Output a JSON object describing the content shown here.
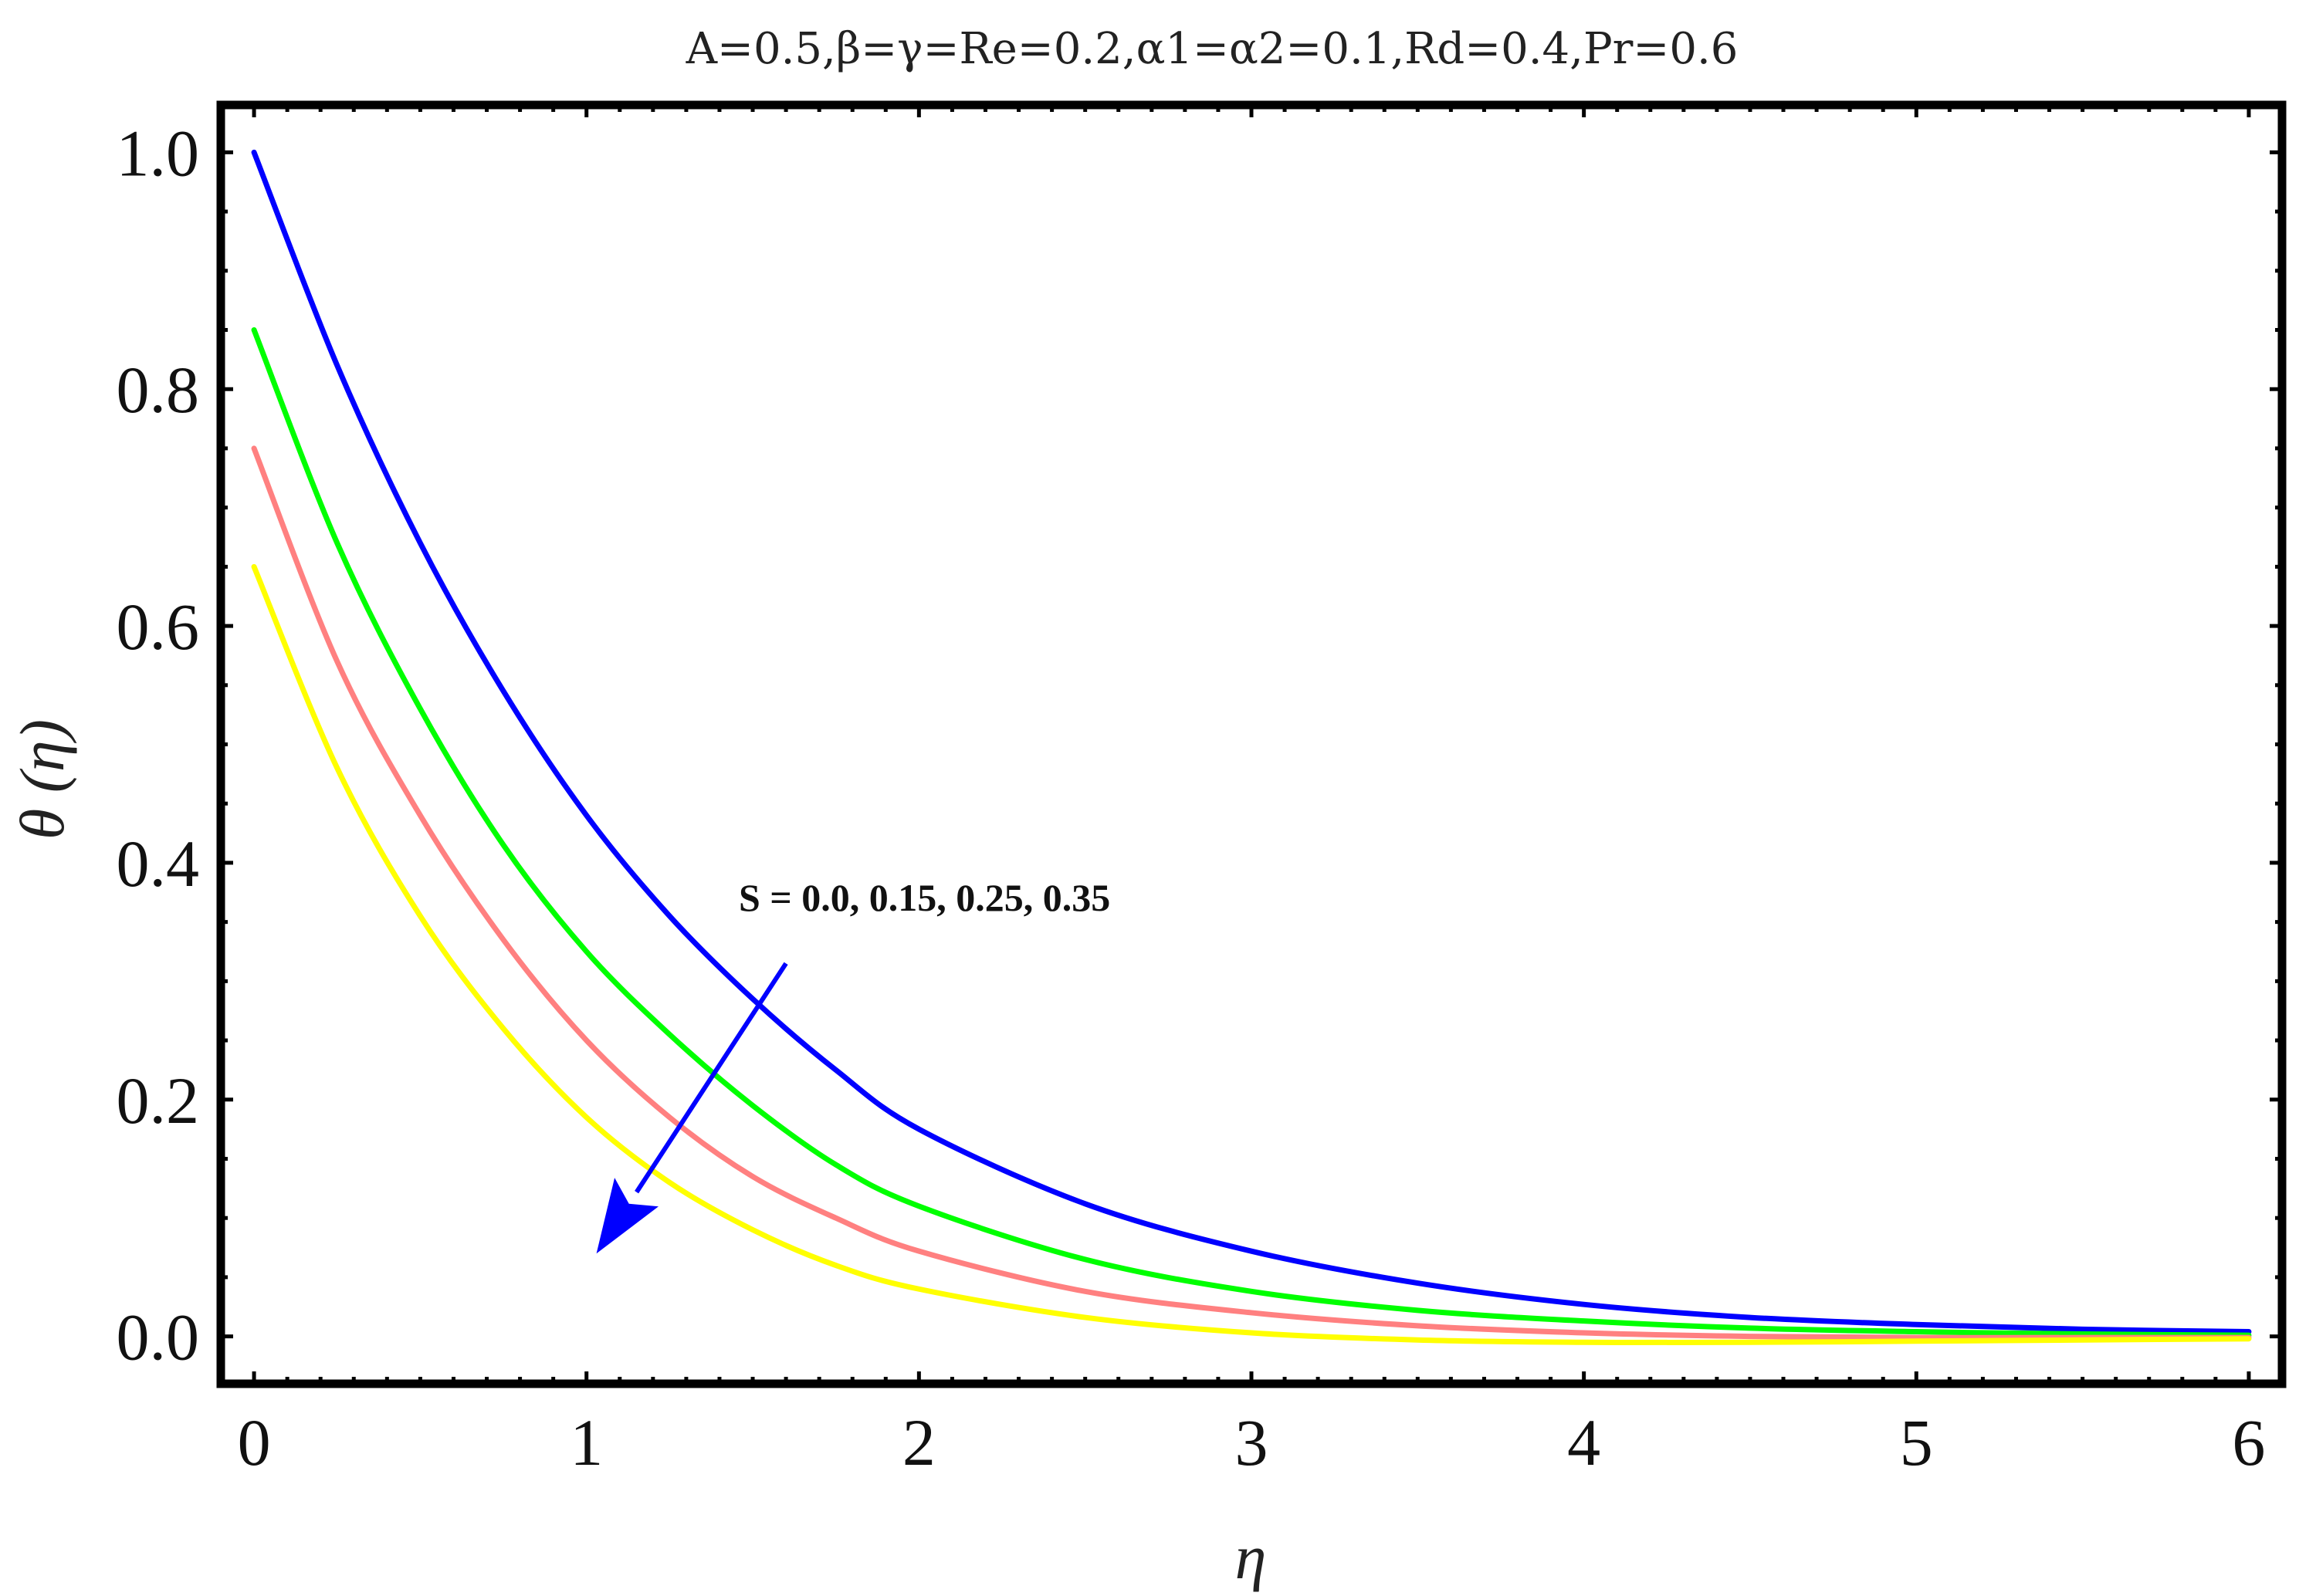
{
  "chart_data": {
    "type": "line",
    "title": "A=0.5,β=γ=Re=0.2,α1=α2=0.1,Rd=0.4,Pr=0.6",
    "xlabel": "η",
    "ylabel": "θ (η)",
    "xlim": [
      -0.1,
      6.1
    ],
    "ylim": [
      -0.04,
      1.04
    ],
    "x_ticks": [
      0,
      1,
      2,
      3,
      4,
      5,
      6
    ],
    "x_tick_labels": [
      "0",
      "1",
      "2",
      "3",
      "4",
      "5",
      "6"
    ],
    "y_ticks": [
      0.0,
      0.2,
      0.4,
      0.6,
      0.8,
      1.0
    ],
    "y_tick_labels": [
      "0.0",
      "0.2",
      "0.4",
      "0.6",
      "0.8",
      "1.0"
    ],
    "grid": false,
    "annotation": {
      "text": "S = 0.0, 0.15, 0.25, 0.35",
      "arrow_from": [
        1.6,
        0.315
      ],
      "arrow_to": [
        1.03,
        0.07
      ],
      "arrow_color": "#0000ff"
    },
    "x": [
      0,
      0.25,
      0.5,
      0.75,
      1,
      1.25,
      1.5,
      1.75,
      2,
      2.5,
      3,
      3.5,
      4,
      4.5,
      5,
      5.5,
      6
    ],
    "series": [
      {
        "color": "#0000ff",
        "values": [
          1.0,
          0.82,
          0.67,
          0.545,
          0.44,
          0.355,
          0.285,
          0.225,
          0.175,
          0.112,
          0.072,
          0.045,
          0.027,
          0.016,
          0.01,
          0.006,
          0.004
        ]
      },
      {
        "color": "#00ff00",
        "values": [
          0.85,
          0.67,
          0.53,
          0.415,
          0.325,
          0.255,
          0.195,
          0.145,
          0.11,
          0.065,
          0.038,
          0.022,
          0.013,
          0.007,
          0.004,
          0.002,
          0.001
        ]
      },
      {
        "color": "#ff8080",
        "values": [
          0.75,
          0.57,
          0.44,
          0.335,
          0.25,
          0.185,
          0.135,
          0.1,
          0.072,
          0.038,
          0.02,
          0.009,
          0.003,
          0.0,
          -0.001,
          -0.001,
          -0.001
        ]
      },
      {
        "color": "#ffff00",
        "values": [
          0.65,
          0.48,
          0.355,
          0.26,
          0.185,
          0.13,
          0.09,
          0.06,
          0.04,
          0.016,
          0.003,
          -0.003,
          -0.005,
          -0.005,
          -0.004,
          -0.003,
          -0.002
        ]
      }
    ]
  }
}
